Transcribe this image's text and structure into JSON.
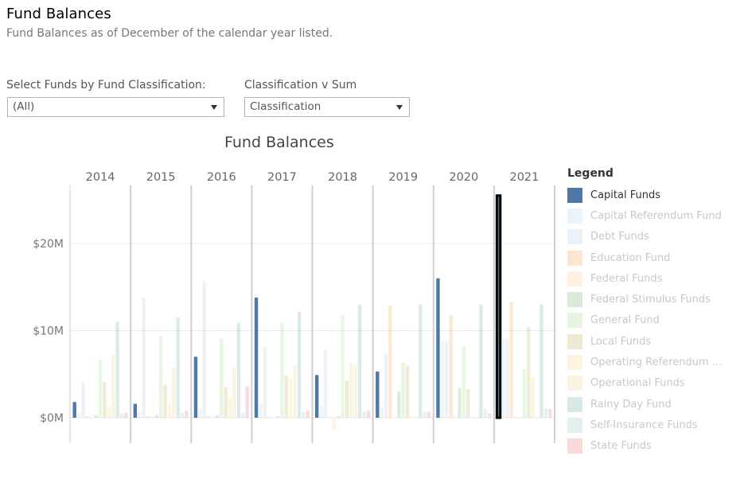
{
  "page": {
    "title": "Fund Balances",
    "subtitle": "Fund Balances as of December of the calendar year listed."
  },
  "filters": {
    "fund_classification": {
      "label": "Select Funds by Fund Classification:",
      "value": "(All)"
    },
    "classification_v_sum": {
      "label": "Classification v Sum",
      "value": "Classification"
    }
  },
  "legend": {
    "title": "Legend",
    "items": [
      {
        "label": "Capital Funds",
        "color": "#4e79a7",
        "active": true
      },
      {
        "label": "Capital Referendum Fund",
        "color": "#a0cbe8",
        "active": false
      },
      {
        "label": "Debt Funds",
        "color": "#a6bddb",
        "active": false
      },
      {
        "label": "Education Fund",
        "color": "#f28e2b",
        "active": false
      },
      {
        "label": "Federal Funds",
        "color": "#ffbe7d",
        "active": false
      },
      {
        "label": "Federal Stimulus Funds",
        "color": "#59a14f",
        "active": false
      },
      {
        "label": "General Fund",
        "color": "#8cd17d",
        "active": false
      },
      {
        "label": "Local Funds",
        "color": "#b6992d",
        "active": false
      },
      {
        "label": "Operating Referendum F...",
        "color": "#f1ce63",
        "active": false
      },
      {
        "label": "Operational Funds",
        "color": "#e8c872",
        "active": false
      },
      {
        "label": "Rainy Day Fund",
        "color": "#499894",
        "active": false
      },
      {
        "label": "Self-Insurance Funds",
        "color": "#86bcb6",
        "active": false
      },
      {
        "label": "State Funds",
        "color": "#e15759",
        "active": false
      }
    ]
  },
  "chart_data": {
    "type": "bar",
    "title": "Fund Balances",
    "x_groups": [
      "2014",
      "2015",
      "2016",
      "2017",
      "2018",
      "2019",
      "2020",
      "2021"
    ],
    "series_names": [
      "Capital Funds",
      "Capital Referendum Fund",
      "Debt Funds",
      "Education Fund",
      "Federal Funds",
      "Federal Stimulus Funds",
      "General Fund",
      "Local Funds",
      "Operating Referendum F...",
      "Operational Funds",
      "Rainy Day Fund",
      "Self-Insurance Funds",
      "State Funds"
    ],
    "values_musd": {
      "2014": [
        1.8,
        0.6,
        4.0,
        0.2,
        0.1,
        0.3,
        6.6,
        4.1,
        1.4,
        7.2,
        11.0,
        0.5,
        0.6
      ],
      "2015": [
        1.6,
        0.7,
        13.8,
        0.2,
        0.1,
        0.3,
        9.4,
        3.8,
        1.6,
        5.8,
        11.5,
        0.6,
        0.8
      ],
      "2016": [
        7.0,
        1.0,
        15.7,
        0.2,
        0.1,
        0.3,
        9.1,
        3.5,
        2.3,
        5.8,
        10.9,
        0.6,
        3.6
      ],
      "2017": [
        13.8,
        1.6,
        8.1,
        0.1,
        0.0,
        0.2,
        10.9,
        4.8,
        4.5,
        5.9,
        12.2,
        0.7,
        0.8
      ],
      "2018": [
        4.9,
        1.4,
        7.8,
        0.1,
        -1.4,
        0.2,
        11.8,
        4.3,
        6.3,
        6.0,
        13.0,
        0.7,
        0.8
      ],
      "2019": [
        5.3,
        1.3,
        7.3,
        12.9,
        0.0,
        3.0,
        6.3,
        6.0,
        0.1,
        0.0,
        13.0,
        0.7,
        0.7
      ],
      "2020": [
        16.0,
        8.8,
        8.8,
        11.8,
        0.0,
        3.4,
        8.2,
        3.3,
        0.1,
        0.0,
        13.0,
        1.0,
        0.5
      ],
      "2021": [
        25.5,
        9.0,
        9.0,
        13.3,
        0.1,
        0.0,
        5.6,
        10.4,
        4.6,
        0.0,
        13.0,
        1.1,
        1.0
      ]
    },
    "highlighted_series": "Capital Funds",
    "selected_mark": {
      "year": "2021",
      "series": "Capital Funds"
    },
    "y_ticks": [
      {
        "value": 0,
        "label": "$0M"
      },
      {
        "value": 10,
        "label": "$10M"
      },
      {
        "value": 20,
        "label": "$20M"
      }
    ],
    "ylim": [
      -3,
      27
    ],
    "grid": true
  }
}
